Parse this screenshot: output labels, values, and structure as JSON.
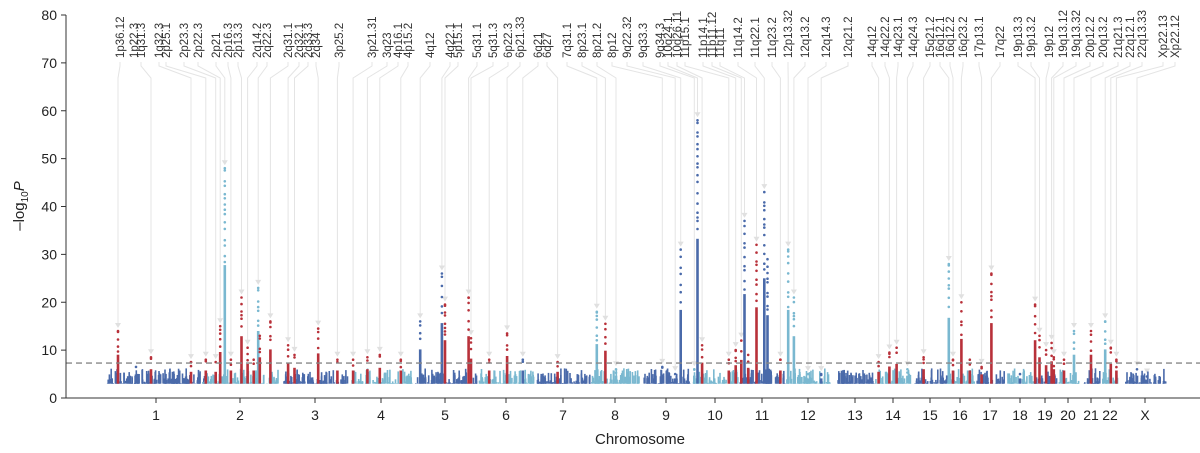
{
  "chart_data": {
    "type": "scatter",
    "subtype": "manhattan",
    "title": "",
    "xlabel": "Chromosome",
    "ylabel": "-log10 P",
    "ylim": [
      0,
      80
    ],
    "yticks": [
      0,
      10,
      20,
      30,
      40,
      50,
      60,
      70,
      80
    ],
    "grid": false,
    "significance_threshold": 7.3,
    "colors": {
      "chrom_dark": "#4a6aaa",
      "chrom_light": "#7ab8d0",
      "hit": "#b8313a",
      "threshold_line": "#888888",
      "leader_line": "#e4e4e4",
      "axis": "#333333"
    },
    "chromosomes": [
      {
        "label": "1",
        "x_order": 1
      },
      {
        "label": "2",
        "x_order": 2
      },
      {
        "label": "3",
        "x_order": 3
      },
      {
        "label": "4",
        "x_order": 4
      },
      {
        "label": "5",
        "x_order": 5
      },
      {
        "label": "6",
        "x_order": 6
      },
      {
        "label": "7",
        "x_order": 7
      },
      {
        "label": "8",
        "x_order": 8
      },
      {
        "label": "9",
        "x_order": 9
      },
      {
        "label": "10",
        "x_order": 10
      },
      {
        "label": "11",
        "x_order": 11
      },
      {
        "label": "12",
        "x_order": 12
      },
      {
        "label": "13",
        "x_order": 13
      },
      {
        "label": "14",
        "x_order": 14
      },
      {
        "label": "15",
        "x_order": 15
      },
      {
        "label": "16",
        "x_order": 16
      },
      {
        "label": "17",
        "x_order": 17
      },
      {
        "label": "18",
        "x_order": 18
      },
      {
        "label": "19",
        "x_order": 19
      },
      {
        "label": "20",
        "x_order": 20
      },
      {
        "label": "21",
        "x_order": 21
      },
      {
        "label": "22",
        "x_order": 22
      },
      {
        "label": "X",
        "x_order": 23
      }
    ],
    "peaks": [
      {
        "chrom": "1",
        "frac": 0.12,
        "value": 14,
        "color": "hit",
        "label_idx": 0
      },
      {
        "chrom": "1",
        "frac": 0.3,
        "value": 6.5,
        "color": "dark"
      },
      {
        "chrom": "1",
        "frac": 0.45,
        "value": 8.5,
        "color": "hit",
        "label_idx": 2
      },
      {
        "chrom": "1",
        "frac": 0.85,
        "value": 7.5,
        "color": "hit",
        "label_idx": 3
      },
      {
        "chrom": "2",
        "frac": 0.05,
        "value": 8,
        "color": "hit",
        "label_idx": 4
      },
      {
        "chrom": "2",
        "frac": 0.18,
        "value": 7.5,
        "color": "hit",
        "label_idx": 5
      },
      {
        "chrom": "2",
        "frac": 0.24,
        "value": 15,
        "color": "hit",
        "label_idx": 6
      },
      {
        "chrom": "2",
        "frac": 0.3,
        "value": 48,
        "color": "light",
        "label_idx": 7
      },
      {
        "chrom": "2",
        "frac": 0.38,
        "value": 8,
        "color": "hit",
        "label_idx": 8
      },
      {
        "chrom": "2",
        "frac": 0.52,
        "value": 21,
        "color": "hit",
        "label_idx": 9
      },
      {
        "chrom": "2",
        "frac": 0.6,
        "value": 10.5,
        "color": "hit",
        "label_idx": 10
      },
      {
        "chrom": "2",
        "frac": 0.68,
        "value": 8,
        "color": "hit"
      },
      {
        "chrom": "2",
        "frac": 0.74,
        "value": 23,
        "color": "light",
        "label_idx": 11
      },
      {
        "chrom": "2",
        "frac": 0.76,
        "value": 13,
        "color": "hit"
      },
      {
        "chrom": "2",
        "frac": 0.9,
        "value": 16,
        "color": "hit",
        "label_idx": 12
      },
      {
        "chrom": "3",
        "frac": 0.08,
        "value": 11,
        "color": "hit",
        "label_idx": 13
      },
      {
        "chrom": "3",
        "frac": 0.18,
        "value": 9,
        "color": "hit",
        "label_idx": 14
      },
      {
        "chrom": "3",
        "frac": 0.55,
        "value": 14.5,
        "color": "hit",
        "label_idx": 15
      },
      {
        "chrom": "3",
        "frac": 0.85,
        "value": 8,
        "color": "hit",
        "label_idx": 16
      },
      {
        "chrom": "4",
        "frac": 0.05,
        "value": 8,
        "color": "hit",
        "label_idx": 17
      },
      {
        "chrom": "4",
        "frac": 0.28,
        "value": 8.5,
        "color": "hit",
        "label_idx": 18
      },
      {
        "chrom": "4",
        "frac": 0.48,
        "value": 9,
        "color": "hit",
        "label_idx": 19
      },
      {
        "chrom": "4",
        "frac": 0.82,
        "value": 8,
        "color": "hit",
        "label_idx": 20
      },
      {
        "chrom": "5",
        "frac": 0.1,
        "value": 16,
        "color": "dark",
        "label_idx": 21
      },
      {
        "chrom": "5",
        "frac": 0.45,
        "value": 26,
        "color": "dark",
        "label_idx": 22
      },
      {
        "chrom": "5",
        "frac": 0.5,
        "value": 19.5,
        "color": "hit",
        "label_idx": 23
      },
      {
        "chrom": "5",
        "frac": 0.88,
        "value": 21,
        "color": "hit",
        "label_idx": 24
      },
      {
        "chrom": "5",
        "frac": 0.92,
        "value": 12.5,
        "color": "hit",
        "label_idx": 25
      },
      {
        "chrom": "6",
        "frac": 0.2,
        "value": 8,
        "color": "hit",
        "label_idx": 26
      },
      {
        "chrom": "6",
        "frac": 0.52,
        "value": 13.5,
        "color": "hit",
        "label_idx": 27
      },
      {
        "chrom": "6",
        "frac": 0.8,
        "value": 8,
        "color": "dark",
        "label_idx": 28
      },
      {
        "chrom": "7",
        "frac": 0.4,
        "value": 7.5,
        "color": "hit",
        "label_idx": 29
      },
      {
        "chrom": "8",
        "frac": 0.12,
        "value": 18,
        "color": "light",
        "label_idx": 30
      },
      {
        "chrom": "8",
        "frac": 0.3,
        "value": 15.5,
        "color": "hit",
        "label_idx": 31
      },
      {
        "chrom": "8",
        "frac": 0.52,
        "value": 6,
        "color": "light",
        "label_idx": 32
      },
      {
        "chrom": "9",
        "frac": 0.42,
        "value": 6.5,
        "color": "dark",
        "label_idx": 33
      },
      {
        "chrom": "9",
        "frac": 0.7,
        "value": 5,
        "color": "dark",
        "label_idx": 34
      },
      {
        "chrom": "9",
        "frac": 0.82,
        "value": 31,
        "color": "dark",
        "label_idx": 35
      },
      {
        "chrom": "10",
        "frac": 0.05,
        "value": 6,
        "color": "light",
        "label_idx": 36
      },
      {
        "chrom": "10",
        "frac": 0.12,
        "value": 58,
        "color": "dark",
        "label_idx": 37
      },
      {
        "chrom": "10",
        "frac": 0.22,
        "value": 11,
        "color": "hit",
        "label_idx": 38
      },
      {
        "chrom": "10",
        "frac": 0.8,
        "value": 8,
        "color": "hit",
        "label_idx": 39
      },
      {
        "chrom": "10",
        "frac": 0.95,
        "value": 10,
        "color": "hit",
        "label_idx": 40
      },
      {
        "chrom": "11",
        "frac": 0.05,
        "value": 12,
        "color": "hit",
        "label_idx": 41
      },
      {
        "chrom": "11",
        "frac": 0.12,
        "value": 37,
        "color": "dark",
        "label_idx": 42
      },
      {
        "chrom": "11",
        "frac": 0.2,
        "value": 9,
        "color": "hit"
      },
      {
        "chrom": "11",
        "frac": 0.38,
        "value": 32,
        "color": "hit",
        "label_idx": 43
      },
      {
        "chrom": "11",
        "frac": 0.55,
        "value": 43,
        "color": "dark",
        "label_idx": 44
      },
      {
        "chrom": "11",
        "frac": 0.62,
        "value": 29,
        "color": "dark"
      },
      {
        "chrom": "11",
        "frac": 0.9,
        "value": 8,
        "color": "hit",
        "label_idx": 45
      },
      {
        "chrom": "12",
        "frac": 0.05,
        "value": 31,
        "color": "light",
        "label_idx": 46
      },
      {
        "chrom": "12",
        "frac": 0.18,
        "value": 21,
        "color": "light",
        "label_idx": 47
      },
      {
        "chrom": "12",
        "frac": 0.5,
        "value": 5,
        "color": "light",
        "label_idx": 48
      },
      {
        "chrom": "12",
        "frac": 0.8,
        "value": 5,
        "color": "dark",
        "label_idx": 49
      },
      {
        "chrom": "14",
        "frac": 0.1,
        "value": 7.5,
        "color": "hit",
        "label_idx": 50
      },
      {
        "chrom": "14",
        "frac": 0.4,
        "value": 9.5,
        "color": "hit",
        "label_idx": 51
      },
      {
        "chrom": "14",
        "frac": 0.6,
        "value": 10.5,
        "color": "hit",
        "label_idx": 52
      },
      {
        "chrom": "14",
        "frac": 0.9,
        "value": 6,
        "color": "light",
        "label_idx": 53
      },
      {
        "chrom": "15",
        "frac": 0.3,
        "value": 8.5,
        "color": "hit",
        "label_idx": 54
      },
      {
        "chrom": "16",
        "frac": 0.1,
        "value": 28,
        "color": "light",
        "label_idx": 55
      },
      {
        "chrom": "16",
        "frac": 0.25,
        "value": 8,
        "color": "hit",
        "label_idx": 56
      },
      {
        "chrom": "16",
        "frac": 0.55,
        "value": 20,
        "color": "hit",
        "label_idx": 57
      },
      {
        "chrom": "16",
        "frac": 0.85,
        "value": 8,
        "color": "hit"
      },
      {
        "chrom": "17",
        "frac": 0.2,
        "value": 6.5,
        "color": "hit",
        "label_idx": 58
      },
      {
        "chrom": "17",
        "frac": 0.55,
        "value": 26,
        "color": "hit",
        "label_idx": 59
      },
      {
        "chrom": "18",
        "frac": 0.5,
        "value": 5,
        "color": "dark"
      },
      {
        "chrom": "19",
        "frac": 0.05,
        "value": 19.5,
        "color": "hit",
        "label_idx": 60
      },
      {
        "chrom": "19",
        "frac": 0.25,
        "value": 13,
        "color": "hit",
        "label_idx": 61
      },
      {
        "chrom": "19",
        "frac": 0.55,
        "value": 10,
        "color": "hit",
        "label_idx": 62
      },
      {
        "chrom": "19",
        "frac": 0.8,
        "value": 11.5,
        "color": "hit",
        "label_idx": 63
      },
      {
        "chrom": "19",
        "frac": 0.9,
        "value": 8.5,
        "color": "hit",
        "label_idx": 64
      },
      {
        "chrom": "20",
        "frac": 0.3,
        "value": 8,
        "color": "hit",
        "label_idx": 65
      },
      {
        "chrom": "20",
        "frac": 0.8,
        "value": 14,
        "color": "light",
        "label_idx": 66
      },
      {
        "chrom": "21",
        "frac": 0.5,
        "value": 14,
        "color": "hit",
        "label_idx": 67
      },
      {
        "chrom": "22",
        "frac": 0.2,
        "value": 16,
        "color": "light",
        "label_idx": 68
      },
      {
        "chrom": "22",
        "frac": 0.55,
        "value": 10.5,
        "color": "hit",
        "label_idx": 69
      },
      {
        "chrom": "22",
        "frac": 0.9,
        "value": 8,
        "color": "hit",
        "label_idx": 70
      },
      {
        "chrom": "X",
        "frac": 0.3,
        "value": 6,
        "color": "dark",
        "label_idx": 71
      },
      {
        "chrom": "X",
        "frac": 0.55,
        "value": 4.5,
        "color": "dark",
        "label_idx": 72
      }
    ],
    "locus_labels": [
      "1p36.12",
      "1p22.3",
      "1q31.3",
      "1q32.3",
      "2p25.1",
      "2p23.3",
      "2p22.3",
      "2p21",
      "2p16.3",
      "2p13.3",
      "2q14.2",
      "2q22.3",
      "2q31.1",
      "2q32.1",
      "2q33.3",
      "2q34",
      "3p25.2",
      "3p21.31",
      "3q23",
      "4p16.1",
      "4p15.2",
      "4q12",
      "4q22.1",
      "5p15.1",
      "5q31.1",
      "5q31.3",
      "6p22.3",
      "6p21.33",
      "6q21",
      "6q27",
      "7q31.1",
      "8p23.1",
      "8p21.2",
      "8p12",
      "9q22.32",
      "9q33.3",
      "9q34.3",
      "10q24.1",
      "10q26.11",
      "11p15.1",
      "11p14.1",
      "11p11.12",
      "11q11",
      "11q14.2",
      "11q22.1",
      "11q23.2",
      "12p13.32",
      "12q13.2",
      "12q14.3",
      "12q21.2",
      "14q12",
      "14q22.2",
      "14q23.1",
      "14q24.3",
      "15q21.2",
      "16q12.1",
      "16q12.2",
      "16q23.2",
      "17p13.1",
      "17q22",
      "19p13.3",
      "19p13.2",
      "19p12",
      "19q13.12",
      "19q13.32",
      "20p12.2",
      "20q13.2",
      "21q21.3",
      "22q12.1",
      "22q13.33",
      "Xp22.13",
      "Xp22.12"
    ]
  }
}
